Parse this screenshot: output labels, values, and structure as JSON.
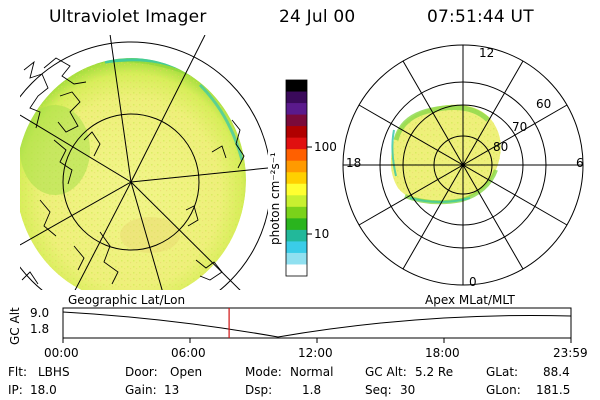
{
  "header": {
    "instrument": "Ultraviolet Imager",
    "date": "24 Jul 00",
    "time": "07:51:44 UT"
  },
  "colorbar": {
    "unit_label": "photon cm⁻²s⁻¹",
    "tick_100": "100",
    "tick_10": "10",
    "colors": [
      "#000000",
      "#3a0a5a",
      "#5a1a8c",
      "#7a0a3a",
      "#b00000",
      "#e01010",
      "#ff6000",
      "#ff9a00",
      "#ffd000",
      "#ffff30",
      "#c8f030",
      "#7ad21a",
      "#2ab41e",
      "#22b89a",
      "#3acce8",
      "#90e0f0",
      "#ffffff"
    ]
  },
  "left_panel": {
    "label": "Geographic Lat/Lon"
  },
  "right_panel": {
    "label": "Apex MLat/MLT",
    "mlt_labels": {
      "top": "12",
      "bottom": "0",
      "left": "18",
      "right": "6"
    },
    "lat_labels": [
      "60",
      "70",
      "80"
    ]
  },
  "timeline": {
    "axis_label": "GC Alt",
    "y_top": "9.0",
    "y_bottom": "1.8",
    "ticks": [
      "00:00",
      "06:00",
      "12:00",
      "18:00",
      "23:59"
    ],
    "current_time_fraction": 0.327
  },
  "info": {
    "flt_label": "Flt:",
    "flt_value": "LBHS",
    "ip_label": "IP:",
    "ip_value": "18.0",
    "door_label": "Door:",
    "door_value": "Open",
    "gain_label": "Gain:",
    "gain_value": "13",
    "mode_label": "Mode:",
    "mode_value": "Normal",
    "dsp_label": "Dsp:",
    "dsp_value": "1.8",
    "gcalt_label": "GC Alt:",
    "gcalt_value": "5.2 Re",
    "seq_label": "Seq:",
    "seq_value": "30",
    "glat_label": "GLat:",
    "glat_value": "88.4",
    "glon_label": "GLon:",
    "glon_value": "181.5"
  }
}
